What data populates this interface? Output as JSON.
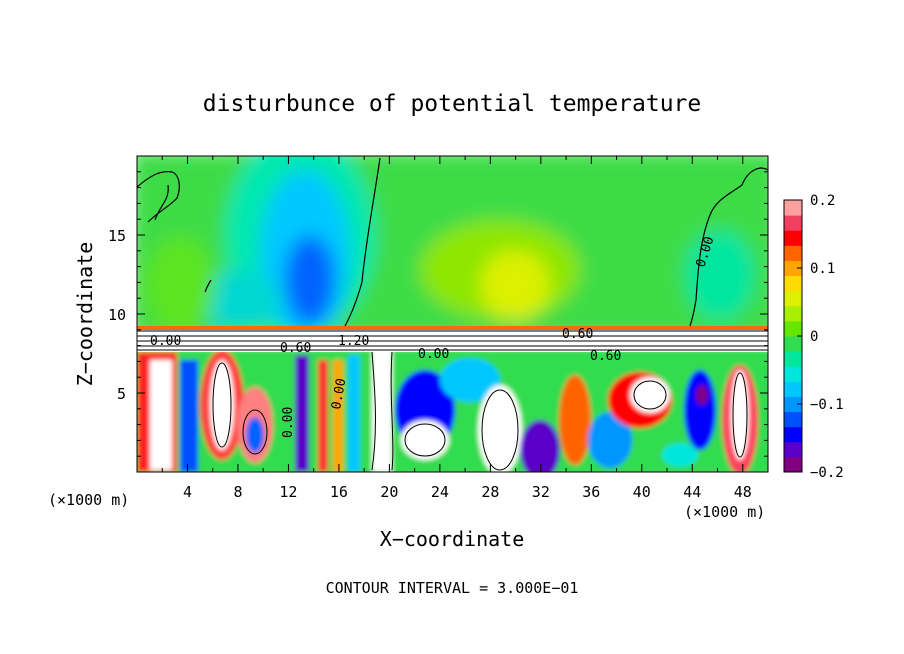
{
  "chart_data": {
    "type": "heatmap",
    "title": "disturbunce of potential temperature",
    "xlabel": "X−coordinate",
    "ylabel": "Z−coordinate",
    "x_unit": "(×1000 m)",
    "x_unit_right": "(×1000 m)",
    "xlim": [
      0,
      50
    ],
    "ylim": [
      0,
      20
    ],
    "x_ticks": [
      4,
      8,
      12,
      16,
      20,
      24,
      28,
      32,
      36,
      40,
      44,
      48
    ],
    "y_ticks": [
      5,
      10,
      15
    ],
    "colorbar": {
      "range": [
        -0.2,
        0.2
      ],
      "ticks": [
        0.2,
        0.1,
        0,
        -0.1,
        -0.2
      ],
      "tick_labels": [
        "0.2",
        "0.1",
        "0",
        "−0.1",
        "−0.2"
      ],
      "colors": [
        "#800080",
        "#5a00c8",
        "#0000ff",
        "#0050ff",
        "#0096ff",
        "#00c8ff",
        "#00e6dc",
        "#00e69a",
        "#32dc50",
        "#64e600",
        "#aaee00",
        "#dcf000",
        "#ffdc00",
        "#ffa500",
        "#ff6400",
        "#ff0000",
        "#f04060",
        "#ffa0a0"
      ]
    },
    "contour_labels": [
      "0.00",
      "0.60",
      "0.60",
      "1.20",
      "0.00",
      "0.60",
      "0.00",
      "0.00",
      "0.00"
    ],
    "annotation": "CONTOUR INTERVAL = 3.000E−01"
  }
}
